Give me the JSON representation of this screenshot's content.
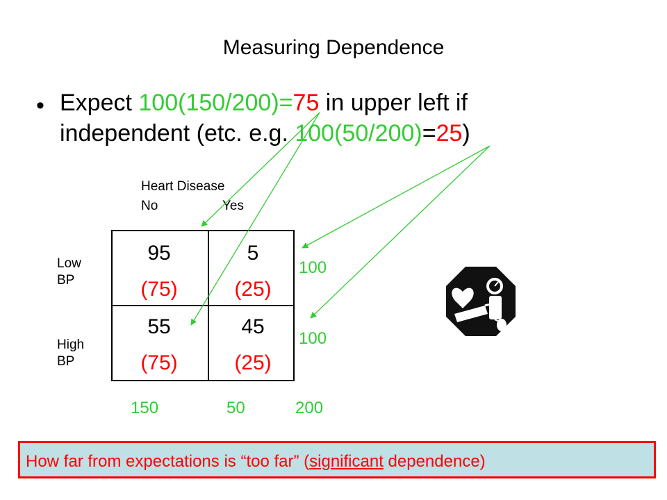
{
  "title": "Measuring Dependence",
  "bullet": {
    "expect": "Expect ",
    "formula1": "100(150/200)=",
    "eq1": "=",
    "val1": "75",
    "mid": " in upper left if independent (etc. e.g. ",
    "formula2": "100(50/200)",
    "eq2": "=",
    "val2": "25",
    "end": ")"
  },
  "header": {
    "title": "Heart Disease",
    "no": "No",
    "yes": "Yes"
  },
  "rows": [
    {
      "label_line1": "Low",
      "label_line2": "BP"
    },
    {
      "label_line1": "High",
      "label_line2": "BP"
    }
  ],
  "cells": [
    {
      "observed": "95",
      "expected": "(75)"
    },
    {
      "observed": "5",
      "expected": "(25)"
    },
    {
      "observed": "55",
      "expected": "(75)"
    },
    {
      "observed": "45",
      "expected": "(25)"
    }
  ],
  "row_totals": [
    "100",
    "100"
  ],
  "col_totals": [
    "150",
    "50"
  ],
  "grand_total": "200",
  "note": {
    "part1": "How far from expectations is “too far”  (",
    "underlined": "significant",
    "part2": " dependence)"
  },
  "icon": "heart-blood-pressure-icon",
  "colors": {
    "green": "#33cc33",
    "red": "#ff0000",
    "note_bg": "#bfe0e5"
  }
}
